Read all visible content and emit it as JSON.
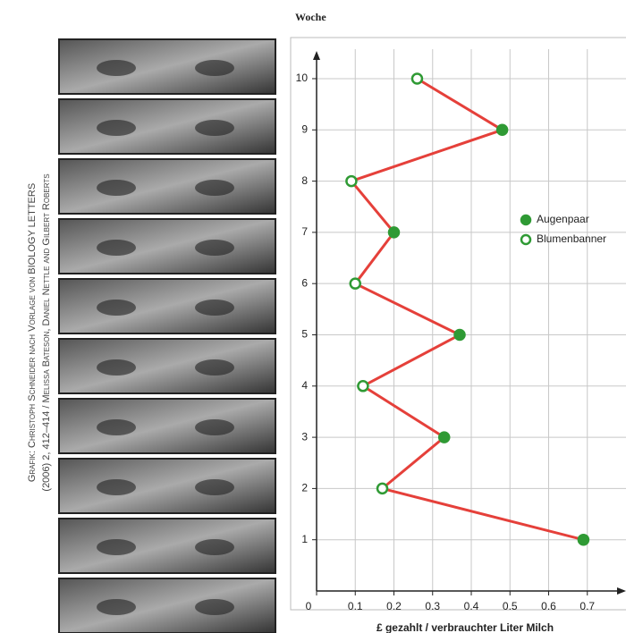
{
  "chart_data": {
    "type": "line",
    "y_title": "Woche",
    "x_title": "£ gezahlt / verbrauchter Liter Milch",
    "credit": [
      "Grafik: Christoph Schneider nach Vorlage von BIOLOGY LETTERS",
      "(2006) 2, 412–414 / Melissa Bateson, Daniel Nettle and Gilbert Roberts"
    ],
    "series": [
      {
        "name": "Augenpaar",
        "marker": "filled",
        "color": "#2f9a34",
        "x": [
          0.69,
          0.33,
          0.37,
          0.2,
          0.48
        ],
        "y": [
          1,
          3,
          5,
          7,
          9
        ]
      },
      {
        "name": "Blumenbanner",
        "marker": "open",
        "color": "#2f9a34",
        "x": [
          0.17,
          0.12,
          0.1,
          0.09,
          0.26
        ],
        "y": [
          2,
          4,
          6,
          8,
          10
        ]
      }
    ],
    "line_color": "#e5403a",
    "xlim": [
      0,
      0.8
    ],
    "xticks": [
      0,
      0.1,
      0.2,
      0.3,
      0.4,
      0.5,
      0.6,
      0.7
    ],
    "ylim": [
      0,
      10.75
    ],
    "yticks": [
      1,
      2,
      3,
      4,
      5,
      6,
      7,
      8,
      9,
      10
    ],
    "grid": true
  }
}
